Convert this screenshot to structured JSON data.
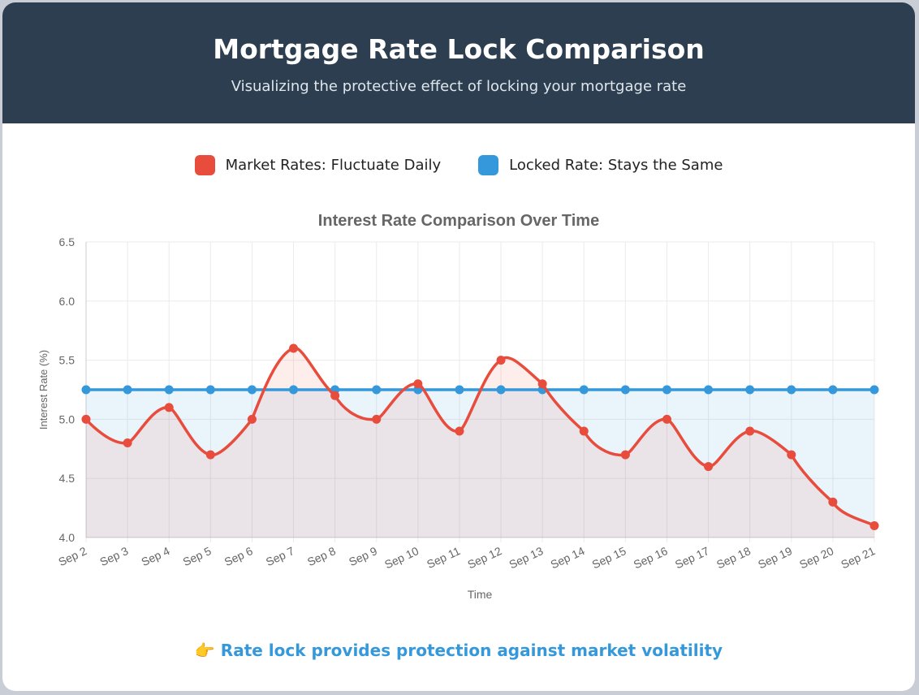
{
  "header": {
    "title": "Mortgage Rate Lock Comparison",
    "subtitle": "Visualizing the protective effect of locking your mortgage rate"
  },
  "legend": [
    {
      "label": "Market Rates: Fluctuate Daily",
      "color": "#e74c3c"
    },
    {
      "label": "Locked Rate: Stays the Same",
      "color": "#3498db"
    }
  ],
  "footer": {
    "icon": "👉",
    "text": "Rate lock provides protection against market volatility"
  },
  "chart_data": {
    "type": "line",
    "title": "Interest Rate Comparison Over Time",
    "xlabel": "Time",
    "ylabel": "Interest Rate (%)",
    "ylim": [
      4.0,
      6.5
    ],
    "yticks": [
      "4.0",
      "4.5",
      "5.0",
      "5.5",
      "6.0",
      "6.5"
    ],
    "categories": [
      "Sep 2",
      "Sep 3",
      "Sep 4",
      "Sep 5",
      "Sep 6",
      "Sep 7",
      "Sep 8",
      "Sep 9",
      "Sep 10",
      "Sep 11",
      "Sep 12",
      "Sep 13",
      "Sep 14",
      "Sep 15",
      "Sep 16",
      "Sep 17",
      "Sep 18",
      "Sep 19",
      "Sep 20",
      "Sep 21"
    ],
    "series": [
      {
        "name": "Market Rates",
        "color": "#e74c3c",
        "values": [
          5.0,
          4.8,
          5.1,
          4.7,
          5.0,
          5.6,
          5.2,
          5.0,
          5.3,
          4.9,
          5.5,
          5.3,
          4.9,
          4.7,
          5.0,
          4.6,
          4.9,
          4.7,
          4.3,
          4.1
        ]
      },
      {
        "name": "Locked Rate",
        "color": "#3498db",
        "values": [
          5.25,
          5.25,
          5.25,
          5.25,
          5.25,
          5.25,
          5.25,
          5.25,
          5.25,
          5.25,
          5.25,
          5.25,
          5.25,
          5.25,
          5.25,
          5.25,
          5.25,
          5.25,
          5.25,
          5.25
        ]
      }
    ],
    "grid": true
  }
}
